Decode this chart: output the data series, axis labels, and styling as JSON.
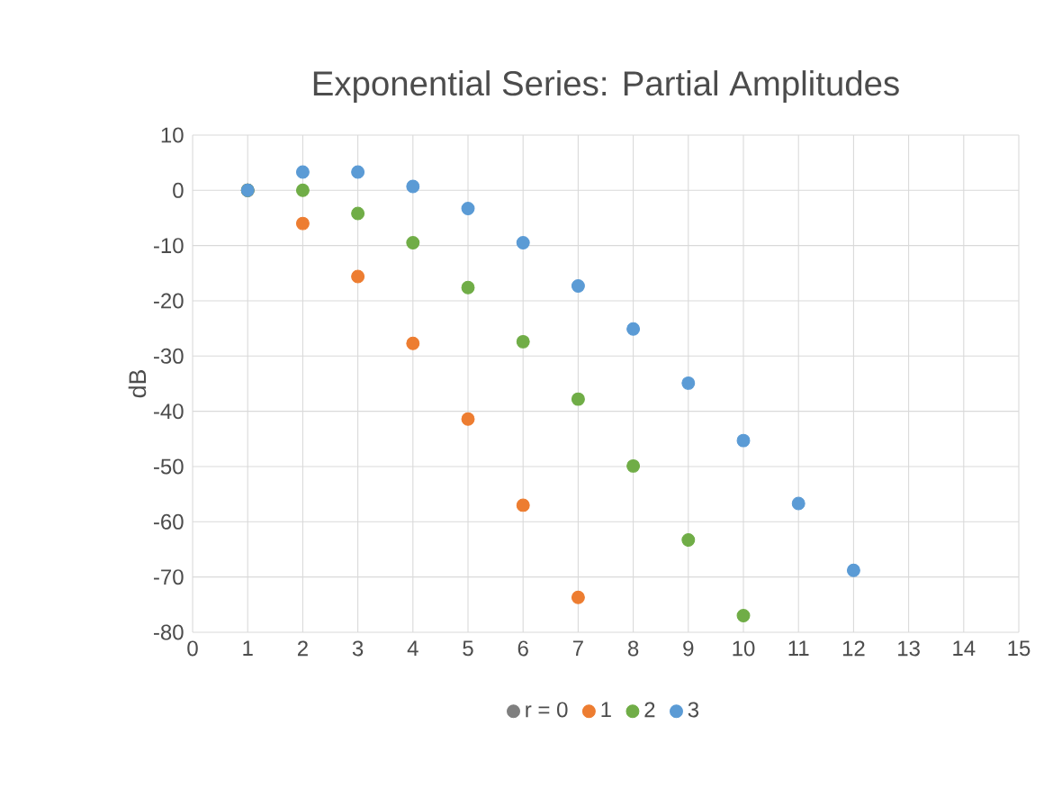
{
  "chart_data": {
    "type": "scatter",
    "title": "Exponential Series: Partial Amplitudes",
    "ylabel": "dB",
    "xlim": [
      0,
      15
    ],
    "xticks": [
      0,
      1,
      2,
      3,
      4,
      5,
      6,
      7,
      8,
      9,
      10,
      11,
      12,
      13,
      14,
      15
    ],
    "ylim": [
      -80,
      10
    ],
    "yticks": [
      -80,
      -70,
      -60,
      -50,
      -40,
      -30,
      -20,
      -10,
      0,
      10
    ],
    "grid": true,
    "legend": "bottom",
    "marker": "circle",
    "series": [
      {
        "name": "r = 0",
        "color": "#7f7f7f",
        "x": [
          1
        ],
        "values": [
          0
        ]
      },
      {
        "name": "1",
        "color": "#ed7d31",
        "x": [
          1,
          2,
          3,
          4,
          5,
          6,
          7
        ],
        "values": [
          0,
          -6,
          -15.6,
          -27.7,
          -41.4,
          -57,
          -73.7
        ]
      },
      {
        "name": "2",
        "color": "#70ad47",
        "x": [
          1,
          2,
          3,
          4,
          5,
          6,
          7,
          8,
          9,
          10
        ],
        "values": [
          0,
          0,
          -4.2,
          -9.5,
          -17.6,
          -27.4,
          -37.8,
          -49.9,
          -63.3,
          -77
        ]
      },
      {
        "name": "3",
        "color": "#5b9bd5",
        "x": [
          1,
          2,
          3,
          4,
          5,
          6,
          7,
          8,
          9,
          10,
          11,
          12
        ],
        "values": [
          0,
          3.3,
          3.3,
          0.7,
          -3.3,
          -9.5,
          -17.3,
          -25.1,
          -34.9,
          -45.3,
          -56.7,
          -68.8
        ]
      }
    ]
  }
}
